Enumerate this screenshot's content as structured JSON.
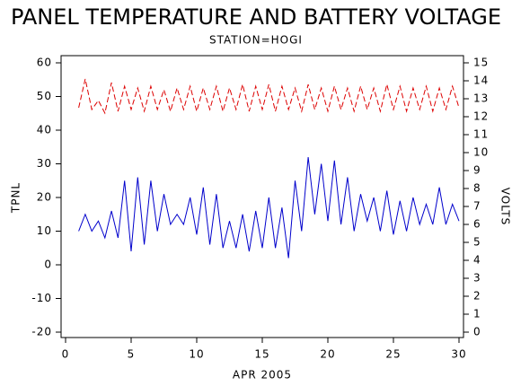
{
  "chart_data": {
    "type": "line",
    "title": "PANEL TEMPERATURE AND BATTERY VOLTAGE",
    "subtitle": "STATION=HOGI",
    "xlabel": "APR 2005",
    "ylabel": "TPNL",
    "y2label": "VOLTS",
    "x": [
      1,
      1.5,
      2,
      2.5,
      3,
      3.5,
      4,
      4.5,
      5,
      5.5,
      6,
      6.5,
      7,
      7.5,
      8,
      8.5,
      9,
      9.5,
      10,
      10.5,
      11,
      11.5,
      12,
      12.5,
      13,
      13.5,
      14,
      14.5,
      15,
      15.5,
      16,
      16.5,
      17,
      17.5,
      18,
      18.5,
      19,
      19.5,
      20,
      20.5,
      21,
      21.5,
      22,
      22.5,
      23,
      23.5,
      24,
      24.5,
      25,
      25.5,
      26,
      26.5,
      27,
      27.5,
      28,
      28.5,
      29,
      29.5,
      30
    ],
    "series": [
      {
        "name": "TPNL",
        "color": "#0000cc",
        "axis": "y",
        "dashed": false,
        "values": [
          10,
          15,
          10,
          13,
          8,
          16,
          8,
          25,
          4,
          26,
          6,
          25,
          10,
          21,
          12,
          15,
          12,
          20,
          9,
          23,
          6,
          21,
          5,
          13,
          5,
          15,
          4,
          16,
          5,
          20,
          5,
          17,
          2,
          25,
          10,
          32,
          15,
          30,
          13,
          31,
          12,
          26,
          10,
          21,
          13,
          20,
          10,
          22,
          9,
          19,
          10,
          20,
          12,
          18,
          12,
          23,
          12,
          18,
          13
        ]
      },
      {
        "name": "VOLTS",
        "color": "#dd0000",
        "axis": "y2",
        "dashed": true,
        "values": [
          12.5,
          14.1,
          12.4,
          12.9,
          12.2,
          13.9,
          12.3,
          13.7,
          12.4,
          13.6,
          12.3,
          13.7,
          12.4,
          13.5,
          12.3,
          13.6,
          12.4,
          13.7,
          12.3,
          13.6,
          12.4,
          13.7,
          12.3,
          13.6,
          12.4,
          13.8,
          12.3,
          13.7,
          12.4,
          13.8,
          12.3,
          13.7,
          12.4,
          13.6,
          12.3,
          13.8,
          12.4,
          13.6,
          12.3,
          13.7,
          12.4,
          13.6,
          12.3,
          13.7,
          12.4,
          13.6,
          12.3,
          13.8,
          12.4,
          13.7,
          12.3,
          13.6,
          12.4,
          13.7,
          12.3,
          13.6,
          12.4,
          13.7,
          12.5
        ]
      }
    ],
    "xlim": [
      0,
      30
    ],
    "xticks": [
      0,
      5,
      10,
      15,
      20,
      25,
      30
    ],
    "ylim": [
      -20,
      60
    ],
    "yticks": [
      -20,
      -10,
      0,
      10,
      20,
      30,
      40,
      50,
      60
    ],
    "y2lim": [
      0,
      15
    ],
    "y2ticks": [
      0,
      1,
      2,
      3,
      4,
      5,
      6,
      7,
      8,
      9,
      10,
      11,
      12,
      13,
      14,
      15
    ]
  }
}
